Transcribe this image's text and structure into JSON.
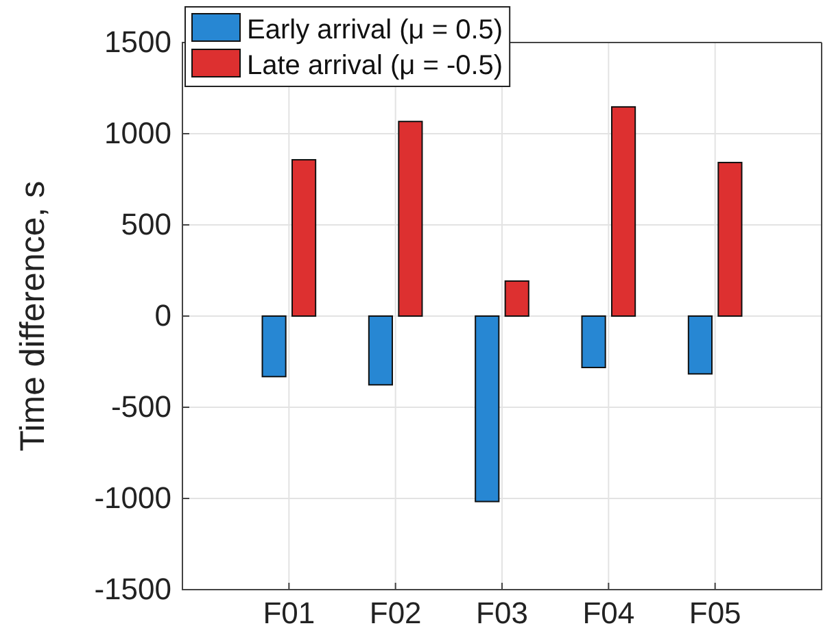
{
  "chart_data": {
    "type": "bar",
    "ylabel": "Time difference, s",
    "categories": [
      "F01",
      "F02",
      "F03",
      "F04",
      "F05"
    ],
    "series": [
      {
        "name": "Early arrival (μ = 0.5)",
        "color": "#2787d3",
        "values": [
          -332,
          -377,
          -1017,
          -282,
          -317
        ]
      },
      {
        "name": "Late arrival (μ = -0.5)",
        "color": "#dd3030",
        "values": [
          857,
          1067,
          192,
          1147,
          842
        ]
      }
    ],
    "ylim": [
      -1500,
      1500
    ],
    "yticks": [
      -1500,
      -1000,
      -500,
      0,
      500,
      1000,
      1500
    ],
    "grid": true,
    "legend": "top left"
  }
}
